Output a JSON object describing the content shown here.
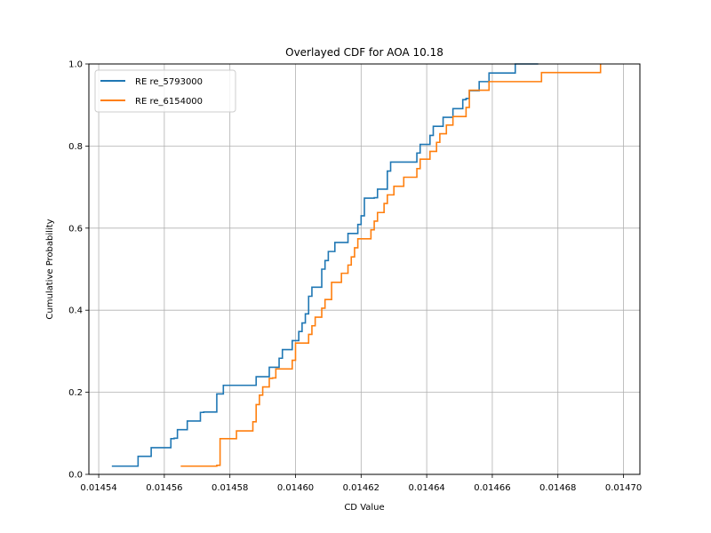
{
  "chart_data": {
    "type": "line",
    "step": true,
    "title": "Overlayed CDF for AOA 10.18",
    "xlabel": "CD Value",
    "ylabel": "Cumulative Probability",
    "xlim": [
      0.014537,
      0.014705
    ],
    "ylim": [
      0,
      1
    ],
    "xticks": [
      "0.01454",
      "0.01456",
      "0.01458",
      "0.01460",
      "0.01462",
      "0.01464",
      "0.01466",
      "0.01468",
      "0.01470"
    ],
    "xtick_values": [
      0.01454,
      0.01456,
      0.01458,
      0.0146,
      0.01462,
      0.01464,
      0.01466,
      0.01468,
      0.0147
    ],
    "yticks": [
      "0.0",
      "0.2",
      "0.4",
      "0.6",
      "0.8",
      "1.0"
    ],
    "ytick_values": [
      0,
      0.2,
      0.4,
      0.6,
      0.8,
      1.0
    ],
    "grid": true,
    "legend_position": "top-left",
    "series": [
      {
        "name": "RE re_5793000",
        "color": "#1f77b4",
        "x": [
          0.014544,
          0.014552,
          0.014556,
          0.014562,
          0.014563,
          0.014564,
          0.014567,
          0.014571,
          0.014572,
          0.014576,
          0.014578,
          0.014588,
          0.014592,
          0.014595,
          0.014596,
          0.014599,
          0.014601,
          0.014602,
          0.014603,
          0.014604,
          0.014604,
          0.014605,
          0.014608,
          0.014608,
          0.014609,
          0.01461,
          0.014612,
          0.014613,
          0.014616,
          0.014619,
          0.01462,
          0.014621,
          0.014621,
          0.014624,
          0.014625,
          0.014628,
          0.014628,
          0.014629,
          0.014637,
          0.014638,
          0.014641,
          0.014642,
          0.014645,
          0.014648,
          0.014651,
          0.014652,
          0.014652,
          0.014653,
          0.014656,
          0.014659,
          0.014667,
          0.014674
        ],
        "y": [
          0.02,
          0.044,
          0.065,
          0.087,
          0.088,
          0.109,
          0.13,
          0.151,
          0.152,
          0.196,
          0.217,
          0.238,
          0.261,
          0.283,
          0.304,
          0.326,
          0.348,
          0.369,
          0.391,
          0.413,
          0.434,
          0.456,
          0.478,
          0.5,
          0.521,
          0.543,
          0.565,
          0.565,
          0.587,
          0.609,
          0.63,
          0.652,
          0.673,
          0.674,
          0.695,
          0.717,
          0.739,
          0.761,
          0.783,
          0.804,
          0.826,
          0.848,
          0.87,
          0.891,
          0.913,
          0.915,
          0.916,
          0.935,
          0.957,
          0.978,
          1.0,
          1.0
        ]
      },
      {
        "name": "RE re_6154000",
        "color": "#ff7f0e",
        "x": [
          0.014565,
          0.014576,
          0.014577,
          0.014577,
          0.014582,
          0.014587,
          0.014588,
          0.014588,
          0.014589,
          0.014589,
          0.01459,
          0.014592,
          0.014593,
          0.014594,
          0.014594,
          0.014599,
          0.0146,
          0.0146,
          0.014604,
          0.014605,
          0.014606,
          0.014608,
          0.014609,
          0.014611,
          0.014611,
          0.014614,
          0.014616,
          0.014617,
          0.014618,
          0.014619,
          0.014619,
          0.014623,
          0.014624,
          0.014625,
          0.014627,
          0.014628,
          0.01463,
          0.014633,
          0.014637,
          0.014638,
          0.014638,
          0.014641,
          0.014643,
          0.014644,
          0.014646,
          0.014648,
          0.014652,
          0.014653,
          0.014659,
          0.014675,
          0.014693
        ],
        "y": [
          0.02,
          0.022,
          0.043,
          0.087,
          0.106,
          0.128,
          0.15,
          0.17,
          0.171,
          0.193,
          0.213,
          0.234,
          0.235,
          0.256,
          0.257,
          0.278,
          0.3,
          0.32,
          0.341,
          0.362,
          0.383,
          0.405,
          0.426,
          0.447,
          0.468,
          0.49,
          0.51,
          0.53,
          0.552,
          0.553,
          0.574,
          0.596,
          0.617,
          0.638,
          0.66,
          0.681,
          0.702,
          0.724,
          0.745,
          0.766,
          0.768,
          0.787,
          0.809,
          0.83,
          0.851,
          0.872,
          0.894,
          0.936,
          0.957,
          0.979,
          1.0
        ]
      }
    ]
  }
}
